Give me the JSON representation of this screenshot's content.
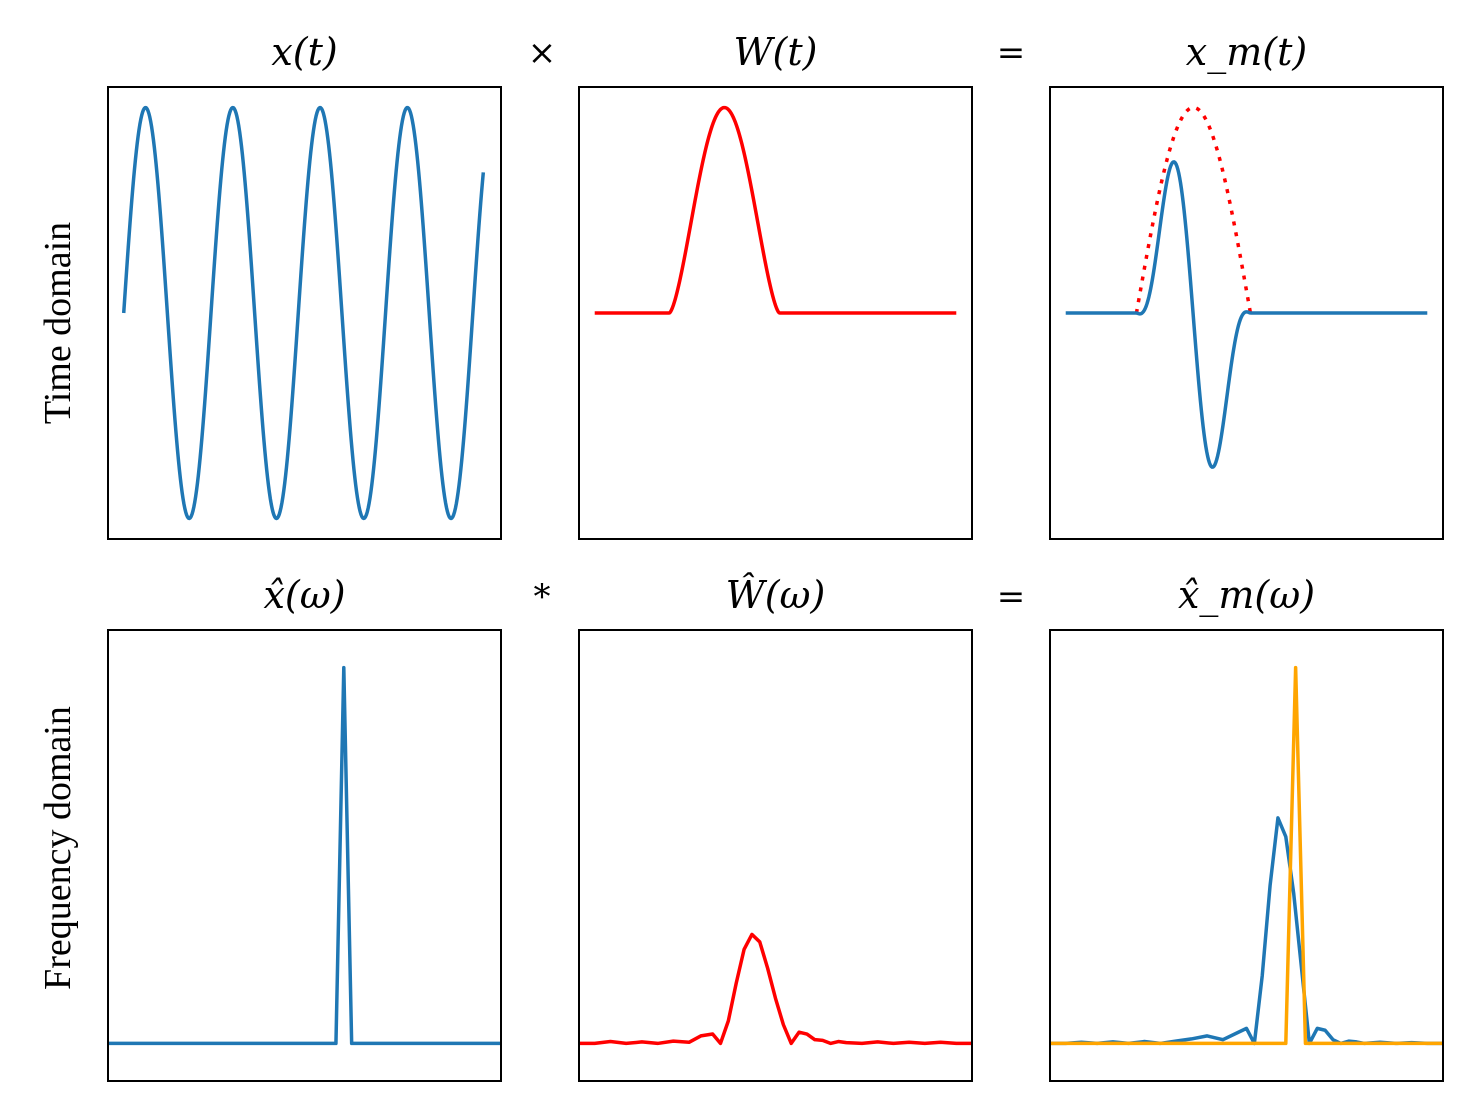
{
  "figure": {
    "row_labels": [
      "Time domain",
      "Frequency domain"
    ],
    "operators": {
      "time": [
        "×",
        "="
      ],
      "frequency": [
        "*",
        "="
      ]
    }
  },
  "chart_data": [
    {
      "type": "line",
      "title": "x(t)",
      "xlim": [
        0,
        1
      ],
      "ylim": [
        -1.1,
        1.1
      ],
      "grid": false,
      "ticks": false,
      "series": [
        {
          "color": "#1f77b4",
          "style": "solid",
          "function": "sine",
          "amplitude": 1.0,
          "cycles": 4.12,
          "x_range": [
            0.04,
            0.955
          ]
        }
      ]
    },
    {
      "type": "line",
      "title": "W(t)",
      "xlim": [
        0,
        1
      ],
      "ylim": [
        -1.1,
        1.1
      ],
      "grid": false,
      "ticks": false,
      "series": [
        {
          "color": "#ff0000",
          "style": "solid",
          "function": "window",
          "amplitude": 1.0,
          "pulse_range": [
            0.23,
            0.51
          ],
          "x_range": [
            0.04,
            0.96
          ]
        }
      ]
    },
    {
      "type": "line",
      "title": "x_m(t)",
      "xlim": [
        0,
        1
      ],
      "ylim": [
        -1.1,
        1.1
      ],
      "grid": false,
      "ticks": false,
      "series": [
        {
          "color": "#ff0000",
          "style": "dotted",
          "function": "envelope",
          "amplitude": 1.0,
          "pulse_range": [
            0.22,
            0.51
          ],
          "x_range": [
            0.22,
            0.51
          ]
        },
        {
          "color": "#1f77b4",
          "style": "solid",
          "function": "windowed_sine",
          "amplitude": 1.0,
          "pulse_range": [
            0.22,
            0.51
          ],
          "x_range": [
            0.04,
            0.96
          ]
        }
      ]
    },
    {
      "type": "line",
      "title": "x̂(ω)",
      "xlim": [
        0,
        1
      ],
      "ylim": [
        -0.1,
        1.1
      ],
      "grid": false,
      "ticks": false,
      "series": [
        {
          "color": "#1f77b4",
          "style": "solid",
          "x": [
            0.0,
            0.58,
            0.6,
            0.62,
            1.0
          ],
          "y": [
            0.0,
            0.0,
            1.0,
            0.0,
            0.0
          ]
        }
      ]
    },
    {
      "type": "line",
      "title": "Ŵ(ω)",
      "xlim": [
        0,
        1
      ],
      "ylim": [
        -0.1,
        1.1
      ],
      "grid": false,
      "ticks": false,
      "series": [
        {
          "color": "#ff0000",
          "style": "solid",
          "x": [
            0.0,
            0.04,
            0.08,
            0.12,
            0.16,
            0.2,
            0.24,
            0.28,
            0.31,
            0.34,
            0.36,
            0.38,
            0.4,
            0.42,
            0.44,
            0.46,
            0.48,
            0.5,
            0.52,
            0.54,
            0.56,
            0.58,
            0.6,
            0.62,
            0.64,
            0.66,
            0.68,
            0.72,
            0.76,
            0.8,
            0.84,
            0.88,
            0.92,
            0.96,
            1.0
          ],
          "y": [
            0.0,
            0.0,
            0.005,
            0.0,
            0.004,
            0.0,
            0.006,
            0.003,
            0.02,
            0.025,
            0.0,
            0.06,
            0.16,
            0.25,
            0.29,
            0.27,
            0.2,
            0.12,
            0.05,
            0.0,
            0.03,
            0.025,
            0.01,
            0.008,
            0.0,
            0.005,
            0.002,
            0.0,
            0.004,
            0.0,
            0.003,
            0.0,
            0.003,
            0.0,
            0.0
          ]
        }
      ]
    },
    {
      "type": "line",
      "title": "x̂_m(ω)",
      "xlim": [
        0,
        1
      ],
      "ylim": [
        -0.1,
        1.1
      ],
      "grid": false,
      "ticks": false,
      "series": [
        {
          "color": "#1f77b4",
          "style": "solid",
          "x": [
            0.0,
            0.04,
            0.08,
            0.12,
            0.16,
            0.2,
            0.24,
            0.28,
            0.32,
            0.36,
            0.4,
            0.44,
            0.48,
            0.5,
            0.52,
            0.54,
            0.56,
            0.58,
            0.6,
            0.62,
            0.64,
            0.66,
            0.68,
            0.7,
            0.72,
            0.74,
            0.76,
            0.78,
            0.8,
            0.84,
            0.88,
            0.92,
            0.96,
            1.0
          ],
          "y": [
            0.0,
            0.0,
            0.003,
            0.0,
            0.004,
            0.0,
            0.005,
            0.0,
            0.006,
            0.012,
            0.02,
            0.01,
            0.03,
            0.04,
            0.0,
            0.18,
            0.42,
            0.6,
            0.55,
            0.4,
            0.2,
            0.0,
            0.04,
            0.035,
            0.01,
            0.0,
            0.006,
            0.004,
            0.0,
            0.003,
            0.0,
            0.002,
            0.0,
            0.0
          ]
        },
        {
          "color": "#ffa500",
          "style": "solid",
          "x": [
            0.0,
            0.6,
            0.625,
            0.65,
            1.0
          ],
          "y": [
            0.0,
            0.0,
            1.0,
            0.0,
            0.0
          ]
        }
      ]
    }
  ]
}
